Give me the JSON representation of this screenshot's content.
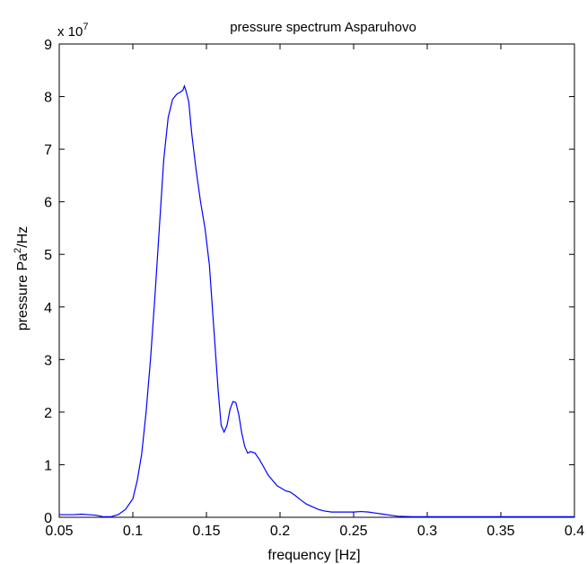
{
  "chart_data": {
    "type": "line",
    "title": "pressure spectrum Asparuhovo",
    "xlabel": "frequency [Hz]",
    "ylabel": "pressure Pa²/Hz",
    "ylabel_parts": {
      "prefix": "pressure Pa",
      "superscript": "2",
      "suffix": "/Hz"
    },
    "y_multiplier": {
      "base": "x 10",
      "exponent": "7"
    },
    "xlim": [
      0.05,
      0.4
    ],
    "ylim": [
      0,
      9
    ],
    "xticks": [
      0.05,
      0.1,
      0.15,
      0.2,
      0.25,
      0.3,
      0.35,
      0.4
    ],
    "xtick_labels": [
      "0.05",
      "0.1",
      "0.15",
      "0.2",
      "0.25",
      "0.3",
      "0.35",
      "0.4"
    ],
    "yticks": [
      0,
      1,
      2,
      3,
      4,
      5,
      6,
      7,
      8,
      9
    ],
    "ytick_labels": [
      "0",
      "1",
      "2",
      "3",
      "4",
      "5",
      "6",
      "7",
      "8",
      "9"
    ],
    "grid": false,
    "line_color": "#0000ff",
    "series": [
      {
        "x": [
          0.05,
          0.055,
          0.06,
          0.065,
          0.07,
          0.075,
          0.08,
          0.085,
          0.09,
          0.095,
          0.1,
          0.103,
          0.106,
          0.109,
          0.112,
          0.115,
          0.118,
          0.121,
          0.124,
          0.127,
          0.13,
          0.132,
          0.134,
          0.135,
          0.136,
          0.138,
          0.14,
          0.143,
          0.146,
          0.149,
          0.152,
          0.155,
          0.158,
          0.16,
          0.162,
          0.164,
          0.166,
          0.168,
          0.17,
          0.172,
          0.174,
          0.176,
          0.178,
          0.18,
          0.183,
          0.186,
          0.189,
          0.192,
          0.195,
          0.198,
          0.201,
          0.204,
          0.207,
          0.21,
          0.214,
          0.218,
          0.222,
          0.226,
          0.23,
          0.235,
          0.24,
          0.245,
          0.25,
          0.255,
          0.26,
          0.265,
          0.27,
          0.275,
          0.28,
          0.29,
          0.3,
          0.32,
          0.35,
          0.37,
          0.4
        ],
        "y": [
          0.05,
          0.05,
          0.05,
          0.06,
          0.05,
          0.04,
          0.01,
          0.01,
          0.05,
          0.15,
          0.35,
          0.7,
          1.2,
          2.0,
          3.0,
          4.2,
          5.5,
          6.8,
          7.6,
          7.95,
          8.05,
          8.08,
          8.12,
          8.2,
          8.12,
          7.9,
          7.3,
          6.6,
          6.0,
          5.5,
          4.8,
          3.6,
          2.4,
          1.75,
          1.62,
          1.75,
          2.05,
          2.2,
          2.18,
          1.95,
          1.6,
          1.35,
          1.22,
          1.25,
          1.22,
          1.1,
          0.95,
          0.8,
          0.7,
          0.6,
          0.55,
          0.5,
          0.48,
          0.42,
          0.33,
          0.25,
          0.2,
          0.15,
          0.12,
          0.1,
          0.1,
          0.1,
          0.1,
          0.11,
          0.1,
          0.08,
          0.06,
          0.04,
          0.02,
          0.01,
          0.01,
          0.01,
          0.01,
          0.01,
          0.01
        ]
      }
    ]
  }
}
